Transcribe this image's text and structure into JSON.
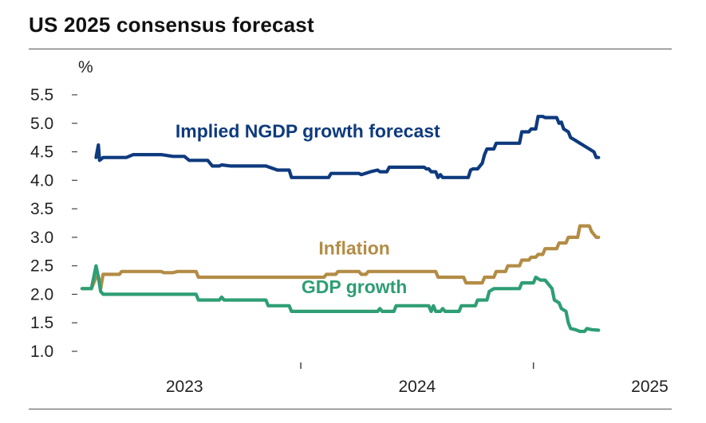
{
  "title": "US 2025 consensus forecast",
  "chart_data": {
    "type": "line",
    "title": "US 2025 consensus forecast",
    "ylabel": "%",
    "xlabel": "",
    "ylim": [
      1.0,
      5.5
    ],
    "yticks": [
      1.0,
      1.5,
      2.0,
      2.5,
      3.0,
      3.5,
      4.0,
      4.5,
      5.0,
      5.5
    ],
    "ytick_labels": [
      "1.0",
      "1.5",
      "2.0",
      "2.5",
      "3.0",
      "3.5",
      "4.0",
      "4.5",
      "5.0",
      "5.5"
    ],
    "xlim": [
      2022.55,
      2025.06
    ],
    "xticks": [
      2023.5,
      2024.5
    ],
    "x_labels": [
      {
        "text": "2023",
        "x": 2023.0
      },
      {
        "text": "2024",
        "x": 2024.0
      },
      {
        "text": "2025",
        "x": 2025.0
      }
    ],
    "series": [
      {
        "name": "Implied NGDP growth forecast",
        "color": "#0e3a7e",
        "label_x": 2023.53,
        "label_y": 4.75,
        "points": [
          [
            2022.62,
            4.4
          ],
          [
            2022.63,
            4.62
          ],
          [
            2022.635,
            4.35
          ],
          [
            2022.65,
            4.4
          ],
          [
            2022.7,
            4.4
          ],
          [
            2022.75,
            4.4
          ],
          [
            2022.78,
            4.45
          ],
          [
            2022.9,
            4.45
          ],
          [
            2022.95,
            4.42
          ],
          [
            2023.0,
            4.42
          ],
          [
            2023.02,
            4.35
          ],
          [
            2023.1,
            4.35
          ],
          [
            2023.12,
            4.25
          ],
          [
            2023.15,
            4.25
          ],
          [
            2023.16,
            4.27
          ],
          [
            2023.2,
            4.25
          ],
          [
            2023.3,
            4.25
          ],
          [
            2023.35,
            4.25
          ],
          [
            2023.4,
            4.18
          ],
          [
            2023.45,
            4.18
          ],
          [
            2023.46,
            4.05
          ],
          [
            2023.55,
            4.05
          ],
          [
            2023.6,
            4.05
          ],
          [
            2023.62,
            4.05
          ],
          [
            2023.63,
            4.12
          ],
          [
            2023.75,
            4.12
          ],
          [
            2023.76,
            4.1
          ],
          [
            2023.8,
            4.15
          ],
          [
            2023.83,
            4.18
          ],
          [
            2023.84,
            4.15
          ],
          [
            2023.87,
            4.15
          ],
          [
            2023.88,
            4.23
          ],
          [
            2024.0,
            4.23
          ],
          [
            2024.03,
            4.23
          ],
          [
            2024.04,
            4.2
          ],
          [
            2024.05,
            4.2
          ],
          [
            2024.06,
            4.15
          ],
          [
            2024.08,
            4.15
          ],
          [
            2024.09,
            4.05
          ],
          [
            2024.1,
            4.1
          ],
          [
            2024.11,
            4.05
          ],
          [
            2024.15,
            4.05
          ],
          [
            2024.2,
            4.05
          ],
          [
            2024.22,
            4.05
          ],
          [
            2024.23,
            4.18
          ],
          [
            2024.24,
            4.2
          ],
          [
            2024.26,
            4.2
          ],
          [
            2024.28,
            4.3
          ],
          [
            2024.29,
            4.45
          ],
          [
            2024.3,
            4.55
          ],
          [
            2024.33,
            4.55
          ],
          [
            2024.34,
            4.65
          ],
          [
            2024.4,
            4.65
          ],
          [
            2024.44,
            4.65
          ],
          [
            2024.45,
            4.85
          ],
          [
            2024.48,
            4.85
          ],
          [
            2024.49,
            4.9
          ],
          [
            2024.51,
            4.9
          ],
          [
            2024.52,
            5.12
          ],
          [
            2024.54,
            5.12
          ],
          [
            2024.55,
            5.1
          ],
          [
            2024.6,
            5.1
          ],
          [
            2024.61,
            5.0
          ],
          [
            2024.62,
            5.02
          ],
          [
            2024.63,
            4.9
          ],
          [
            2024.65,
            4.85
          ],
          [
            2024.66,
            4.75
          ],
          [
            2024.68,
            4.7
          ],
          [
            2024.7,
            4.65
          ],
          [
            2024.72,
            4.6
          ],
          [
            2024.74,
            4.55
          ],
          [
            2024.76,
            4.5
          ],
          [
            2024.77,
            4.4
          ],
          [
            2024.78,
            4.4
          ]
        ]
      },
      {
        "name": "Inflation",
        "color": "#b38c45",
        "label_x": 2023.73,
        "label_y": 2.7,
        "points": [
          [
            2022.56,
            2.1
          ],
          [
            2022.6,
            2.1
          ],
          [
            2022.61,
            2.2
          ],
          [
            2022.62,
            2.3
          ],
          [
            2022.63,
            2.32
          ],
          [
            2022.64,
            2.1
          ],
          [
            2022.65,
            2.35
          ],
          [
            2022.72,
            2.35
          ],
          [
            2022.73,
            2.4
          ],
          [
            2022.9,
            2.4
          ],
          [
            2022.91,
            2.38
          ],
          [
            2022.95,
            2.38
          ],
          [
            2022.97,
            2.4
          ],
          [
            2023.0,
            2.4
          ],
          [
            2023.05,
            2.4
          ],
          [
            2023.06,
            2.3
          ],
          [
            2023.2,
            2.3
          ],
          [
            2023.5,
            2.3
          ],
          [
            2023.6,
            2.3
          ],
          [
            2023.61,
            2.35
          ],
          [
            2023.65,
            2.35
          ],
          [
            2023.66,
            2.4
          ],
          [
            2023.75,
            2.4
          ],
          [
            2023.76,
            2.35
          ],
          [
            2023.78,
            2.35
          ],
          [
            2023.79,
            2.4
          ],
          [
            2024.0,
            2.4
          ],
          [
            2024.08,
            2.4
          ],
          [
            2024.09,
            2.3
          ],
          [
            2024.2,
            2.3
          ],
          [
            2024.21,
            2.2
          ],
          [
            2024.28,
            2.2
          ],
          [
            2024.29,
            2.3
          ],
          [
            2024.33,
            2.3
          ],
          [
            2024.34,
            2.4
          ],
          [
            2024.38,
            2.4
          ],
          [
            2024.39,
            2.5
          ],
          [
            2024.44,
            2.5
          ],
          [
            2024.45,
            2.6
          ],
          [
            2024.48,
            2.6
          ],
          [
            2024.49,
            2.65
          ],
          [
            2024.51,
            2.65
          ],
          [
            2024.52,
            2.7
          ],
          [
            2024.54,
            2.7
          ],
          [
            2024.55,
            2.8
          ],
          [
            2024.6,
            2.8
          ],
          [
            2024.61,
            2.9
          ],
          [
            2024.64,
            2.9
          ],
          [
            2024.65,
            3.0
          ],
          [
            2024.69,
            3.0
          ],
          [
            2024.7,
            3.2
          ],
          [
            2024.74,
            3.2
          ],
          [
            2024.75,
            3.1
          ],
          [
            2024.76,
            3.05
          ],
          [
            2024.77,
            3.0
          ],
          [
            2024.78,
            3.0
          ]
        ]
      },
      {
        "name": "GDP growth",
        "color": "#2e9e74",
        "label_x": 2023.73,
        "label_y": 2.02,
        "points": [
          [
            2022.56,
            2.1
          ],
          [
            2022.6,
            2.1
          ],
          [
            2022.61,
            2.3
          ],
          [
            2022.62,
            2.5
          ],
          [
            2022.63,
            2.3
          ],
          [
            2022.64,
            2.05
          ],
          [
            2022.65,
            2.0
          ],
          [
            2022.7,
            2.0
          ],
          [
            2022.8,
            2.0
          ],
          [
            2022.9,
            2.0
          ],
          [
            2023.0,
            2.0
          ],
          [
            2023.05,
            2.0
          ],
          [
            2023.06,
            1.9
          ],
          [
            2023.15,
            1.9
          ],
          [
            2023.16,
            1.95
          ],
          [
            2023.17,
            1.9
          ],
          [
            2023.3,
            1.9
          ],
          [
            2023.35,
            1.9
          ],
          [
            2023.36,
            1.8
          ],
          [
            2023.45,
            1.8
          ],
          [
            2023.46,
            1.7
          ],
          [
            2023.6,
            1.7
          ],
          [
            2023.7,
            1.7
          ],
          [
            2023.8,
            1.7
          ],
          [
            2023.83,
            1.7
          ],
          [
            2023.84,
            1.75
          ],
          [
            2023.85,
            1.7
          ],
          [
            2023.9,
            1.7
          ],
          [
            2023.91,
            1.8
          ],
          [
            2024.0,
            1.8
          ],
          [
            2024.05,
            1.8
          ],
          [
            2024.06,
            1.7
          ],
          [
            2024.07,
            1.8
          ],
          [
            2024.08,
            1.7
          ],
          [
            2024.1,
            1.7
          ],
          [
            2024.11,
            1.75
          ],
          [
            2024.12,
            1.7
          ],
          [
            2024.18,
            1.7
          ],
          [
            2024.19,
            1.8
          ],
          [
            2024.25,
            1.8
          ],
          [
            2024.26,
            1.9
          ],
          [
            2024.3,
            1.9
          ],
          [
            2024.31,
            2.05
          ],
          [
            2024.33,
            2.1
          ],
          [
            2024.4,
            2.1
          ],
          [
            2024.44,
            2.1
          ],
          [
            2024.45,
            2.2
          ],
          [
            2024.5,
            2.2
          ],
          [
            2024.51,
            2.3
          ],
          [
            2024.53,
            2.25
          ],
          [
            2024.55,
            2.25
          ],
          [
            2024.56,
            2.2
          ],
          [
            2024.58,
            2.1
          ],
          [
            2024.59,
            1.9
          ],
          [
            2024.61,
            1.85
          ],
          [
            2024.62,
            1.75
          ],
          [
            2024.64,
            1.7
          ],
          [
            2024.65,
            1.5
          ],
          [
            2024.66,
            1.4
          ],
          [
            2024.68,
            1.38
          ],
          [
            2024.7,
            1.35
          ],
          [
            2024.72,
            1.35
          ],
          [
            2024.73,
            1.4
          ],
          [
            2024.75,
            1.38
          ],
          [
            2024.78,
            1.37
          ]
        ]
      }
    ]
  }
}
